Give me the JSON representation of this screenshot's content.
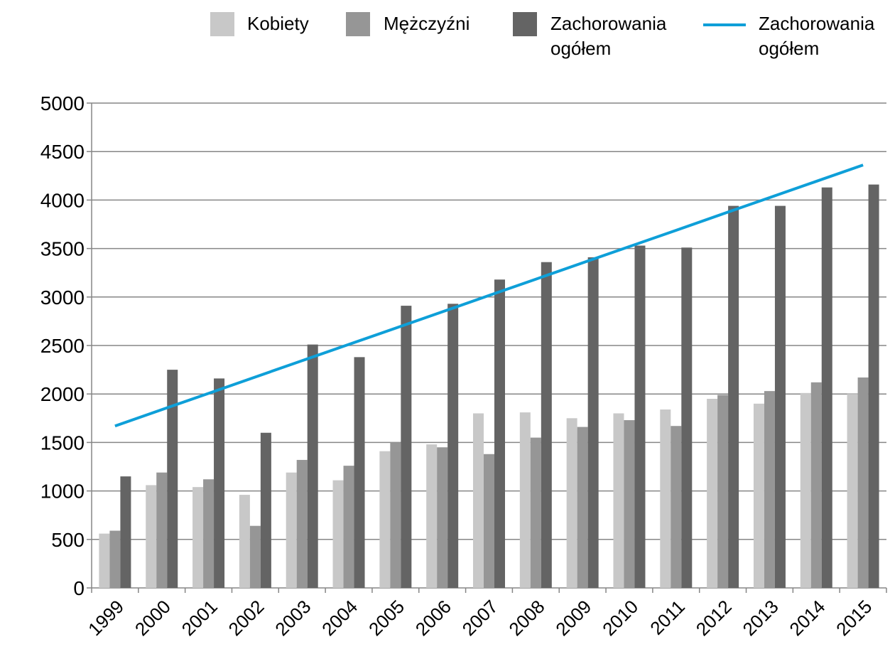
{
  "chart_data": {
    "type": "bar",
    "categories": [
      "1999",
      "2000",
      "2001",
      "2002",
      "2003",
      "2004",
      "2005",
      "2006",
      "2007",
      "2008",
      "2009",
      "2010",
      "2011",
      "2012",
      "2013",
      "2014",
      "2015"
    ],
    "series": [
      {
        "name": "Kobiety",
        "type": "bar",
        "color": "#c8c8c8",
        "values": [
          560,
          1060,
          1040,
          960,
          1190,
          1110,
          1410,
          1480,
          1800,
          1810,
          1750,
          1800,
          1840,
          1950,
          1900,
          2010,
          2000
        ]
      },
      {
        "name": "Mężczyźni",
        "type": "bar",
        "color": "#969696",
        "values": [
          590,
          1190,
          1120,
          640,
          1320,
          1260,
          1500,
          1450,
          1380,
          1550,
          1660,
          1730,
          1670,
          1990,
          2030,
          2120,
          2170
        ]
      },
      {
        "name": "Zachorowania ogółem",
        "type": "bar",
        "color": "#646464",
        "values": [
          1150,
          2250,
          2160,
          1600,
          2510,
          2380,
          2910,
          2930,
          3180,
          3360,
          3410,
          3530,
          3510,
          3940,
          3940,
          4130,
          4160
        ]
      },
      {
        "name": "Zachorowania ogółem",
        "type": "line",
        "color": "#0e9fd8",
        "values": [
          1670,
          1838,
          2006,
          2175,
          2343,
          2511,
          2679,
          2847,
          3016,
          3184,
          3352,
          3520,
          3688,
          3857,
          4025,
          4193,
          4361
        ]
      }
    ],
    "ylim": [
      0,
      5000
    ],
    "yticks": [
      0,
      500,
      1000,
      1500,
      2000,
      2500,
      3000,
      3500,
      4000,
      4500,
      5000
    ],
    "grid": true,
    "legend": "top"
  }
}
